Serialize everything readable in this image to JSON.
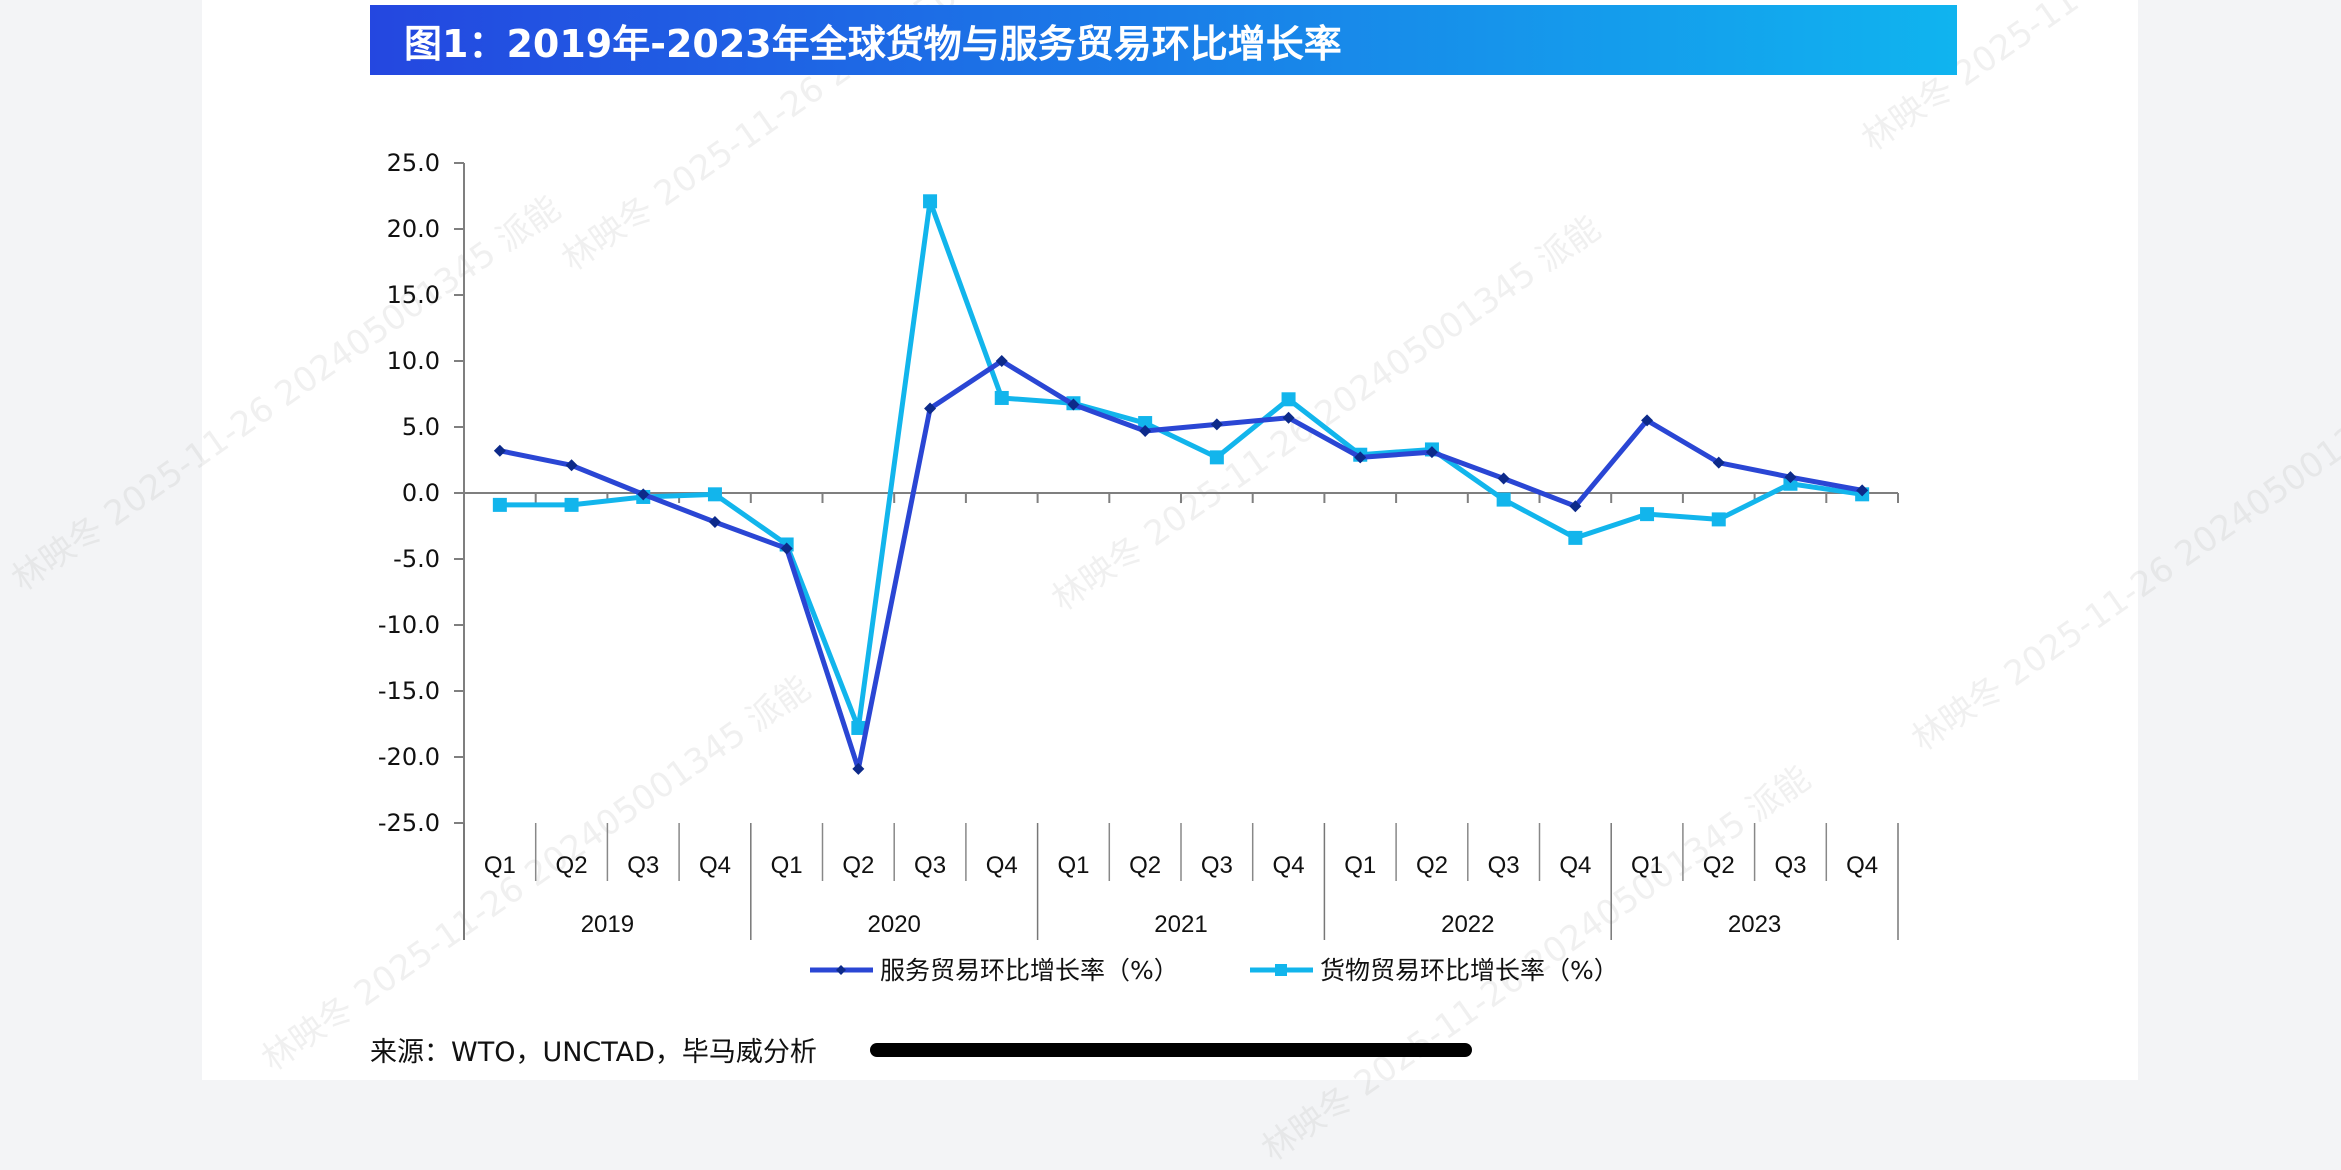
{
  "title": "图1：2019年-2023年全球货物与服务贸易环比增长率",
  "source": "来源：WTO，UNCTAD，毕马威分析",
  "watermark": "林映冬 2025-11-26 202405001345 派能",
  "colors": {
    "services": "#2a46d4",
    "services_marker": "#0d2a8a",
    "goods": "#12b5ec",
    "axis": "#7f7f7f",
    "title_start": "#2447e0",
    "title_end": "#10b4ef"
  },
  "chart_data": {
    "type": "line",
    "title": "图1：2019年-2023年全球货物与服务贸易环比增长率",
    "xlabel": "",
    "ylabel": "",
    "ylim": [
      -25.0,
      25.0
    ],
    "yticks": [
      "25.0",
      "20.0",
      "15.0",
      "10.0",
      "5.0",
      "0.0",
      "-5.0",
      "-10.0",
      "-15.0",
      "-20.0",
      "-25.0"
    ],
    "years": [
      "2019",
      "2020",
      "2021",
      "2022",
      "2023"
    ],
    "quarters": [
      "Q1",
      "Q2",
      "Q3",
      "Q4"
    ],
    "categories": [
      "2019 Q1",
      "2019 Q2",
      "2019 Q3",
      "2019 Q4",
      "2020 Q1",
      "2020 Q2",
      "2020 Q3",
      "2020 Q4",
      "2021 Q1",
      "2021 Q2",
      "2021 Q3",
      "2021 Q4",
      "2022 Q1",
      "2022 Q2",
      "2022 Q3",
      "2022 Q4",
      "2023 Q1",
      "2023 Q2",
      "2023 Q3",
      "2023 Q4"
    ],
    "series": [
      {
        "name": "服务贸易环比增长率（%）",
        "marker": "diamond",
        "values": [
          3.2,
          2.1,
          -0.1,
          -2.2,
          -4.2,
          -20.9,
          6.4,
          10.0,
          6.7,
          4.7,
          5.2,
          5.7,
          2.7,
          3.1,
          1.1,
          -1.0,
          5.5,
          2.3,
          1.2,
          0.2
        ]
      },
      {
        "name": "货物贸易环比增长率（%）",
        "marker": "square",
        "values": [
          -0.9,
          -0.9,
          -0.3,
          -0.1,
          -3.9,
          -17.8,
          22.1,
          7.2,
          6.8,
          5.3,
          2.7,
          7.1,
          2.9,
          3.3,
          -0.5,
          -3.4,
          -1.6,
          -2.0,
          0.7,
          -0.1
        ]
      }
    ],
    "grid": false,
    "legend_position": "bottom"
  }
}
